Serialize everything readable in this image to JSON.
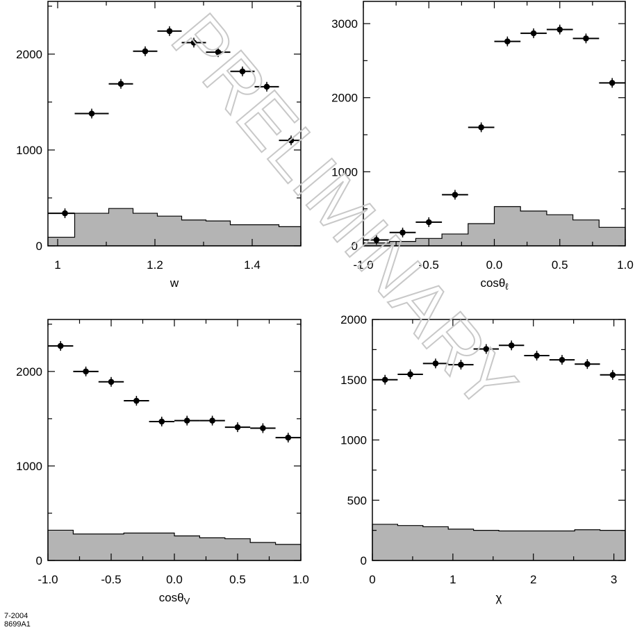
{
  "watermark": "PRELIMINARY",
  "footer": {
    "date_code": "7-2004",
    "figure_code": "8699A1"
  },
  "chart_data": [
    {
      "type": "scatter",
      "xlabel": "w",
      "xlim": [
        0.98,
        1.5
      ],
      "ylim": [
        0,
        2550
      ],
      "xticks": [
        1,
        1.2,
        1.4
      ],
      "xtick_labels": [
        "1",
        "1.2",
        "1.4"
      ],
      "yticks": [
        0,
        1000,
        2000
      ],
      "ytick_labels": [
        "0",
        "1000",
        "2000"
      ],
      "bin_edges": [
        0.98,
        1.035,
        1.105,
        1.155,
        1.205,
        1.255,
        1.305,
        1.355,
        1.405,
        1.455,
        1.5
      ],
      "series": [
        {
          "role": "data_points",
          "x": [
            1.015,
            1.07,
            1.13,
            1.18,
            1.23,
            1.28,
            1.33,
            1.38,
            1.43,
            1.48
          ],
          "values": [
            340,
            1380,
            1690,
            2030,
            2240,
            2120,
            2020,
            1820,
            1660,
            1100
          ]
        },
        {
          "role": "background_histogram",
          "values": [
            90,
            340,
            390,
            340,
            310,
            270,
            260,
            220,
            220,
            200
          ]
        }
      ]
    },
    {
      "type": "scatter",
      "xlabel": "cosθ",
      "xlabel_sub": "ℓ",
      "xlim": [
        -1.0,
        1.0
      ],
      "ylim": [
        0,
        3300
      ],
      "xticks": [
        -1.0,
        -0.5,
        0.0,
        0.5,
        1.0
      ],
      "xtick_labels": [
        "-1.0",
        "-0.5",
        "0.0",
        "0.5",
        "1.0"
      ],
      "yticks": [
        0,
        1000,
        2000,
        3000
      ],
      "ytick_labels": [
        "0",
        "1000",
        "2000",
        "3000"
      ],
      "bin_edges": [
        -1.0,
        -0.8,
        -0.6,
        -0.4,
        -0.2,
        0.0,
        0.2,
        0.4,
        0.6,
        0.8,
        1.0
      ],
      "series": [
        {
          "role": "data_points",
          "x": [
            -0.9,
            -0.7,
            -0.5,
            -0.3,
            -0.1,
            0.1,
            0.3,
            0.5,
            0.7,
            0.9
          ],
          "values": [
            80,
            180,
            320,
            690,
            1600,
            2760,
            2870,
            2920,
            2800,
            2200
          ]
        },
        {
          "role": "background_histogram",
          "values": [
            40,
            60,
            100,
            160,
            300,
            530,
            470,
            420,
            350,
            250
          ]
        }
      ]
    },
    {
      "type": "scatter",
      "xlabel": "cosθ",
      "xlabel_sub": "V",
      "xlim": [
        -1.0,
        1.0
      ],
      "ylim": [
        0,
        2550
      ],
      "xticks": [
        -1.0,
        -0.5,
        0.0,
        0.5,
        1.0
      ],
      "xtick_labels": [
        "-1.0",
        "-0.5",
        "0.0",
        "0.5",
        "1.0"
      ],
      "yticks": [
        0,
        1000,
        2000
      ],
      "ytick_labels": [
        "0",
        "1000",
        "2000"
      ],
      "bin_edges": [
        -1.0,
        -0.8,
        -0.6,
        -0.4,
        -0.2,
        0.0,
        0.2,
        0.4,
        0.6,
        0.8,
        1.0
      ],
      "series": [
        {
          "role": "data_points",
          "x": [
            -0.9,
            -0.7,
            -0.5,
            -0.3,
            -0.1,
            0.1,
            0.3,
            0.5,
            0.7,
            0.9
          ],
          "values": [
            2270,
            2000,
            1890,
            1690,
            1470,
            1480,
            1480,
            1410,
            1400,
            1300
          ]
        },
        {
          "role": "background_histogram",
          "values": [
            320,
            280,
            280,
            290,
            290,
            260,
            240,
            230,
            190,
            170
          ]
        }
      ]
    },
    {
      "type": "scatter",
      "xlabel": "χ",
      "xlim": [
        0,
        3.1416
      ],
      "ylim": [
        0,
        2000
      ],
      "xticks": [
        0,
        1,
        2,
        3
      ],
      "xtick_labels": [
        "0",
        "1",
        "2",
        "3"
      ],
      "yticks": [
        0,
        500,
        1000,
        1500,
        2000
      ],
      "ytick_labels": [
        "0",
        "500",
        "1000",
        "1500",
        "2000"
      ],
      "bin_edges": [
        0,
        0.3142,
        0.6283,
        0.9425,
        1.2566,
        1.5708,
        1.885,
        2.1991,
        2.5133,
        2.8274,
        3.1416
      ],
      "series": [
        {
          "role": "data_points",
          "x": [
            0.157,
            0.471,
            0.785,
            1.1,
            1.414,
            1.728,
            2.042,
            2.356,
            2.67,
            2.985
          ],
          "values": [
            1500,
            1545,
            1635,
            1625,
            1755,
            1785,
            1700,
            1665,
            1630,
            1540
          ]
        },
        {
          "role": "background_histogram",
          "values": [
            300,
            290,
            280,
            260,
            250,
            245,
            245,
            245,
            255,
            250
          ]
        }
      ]
    }
  ]
}
